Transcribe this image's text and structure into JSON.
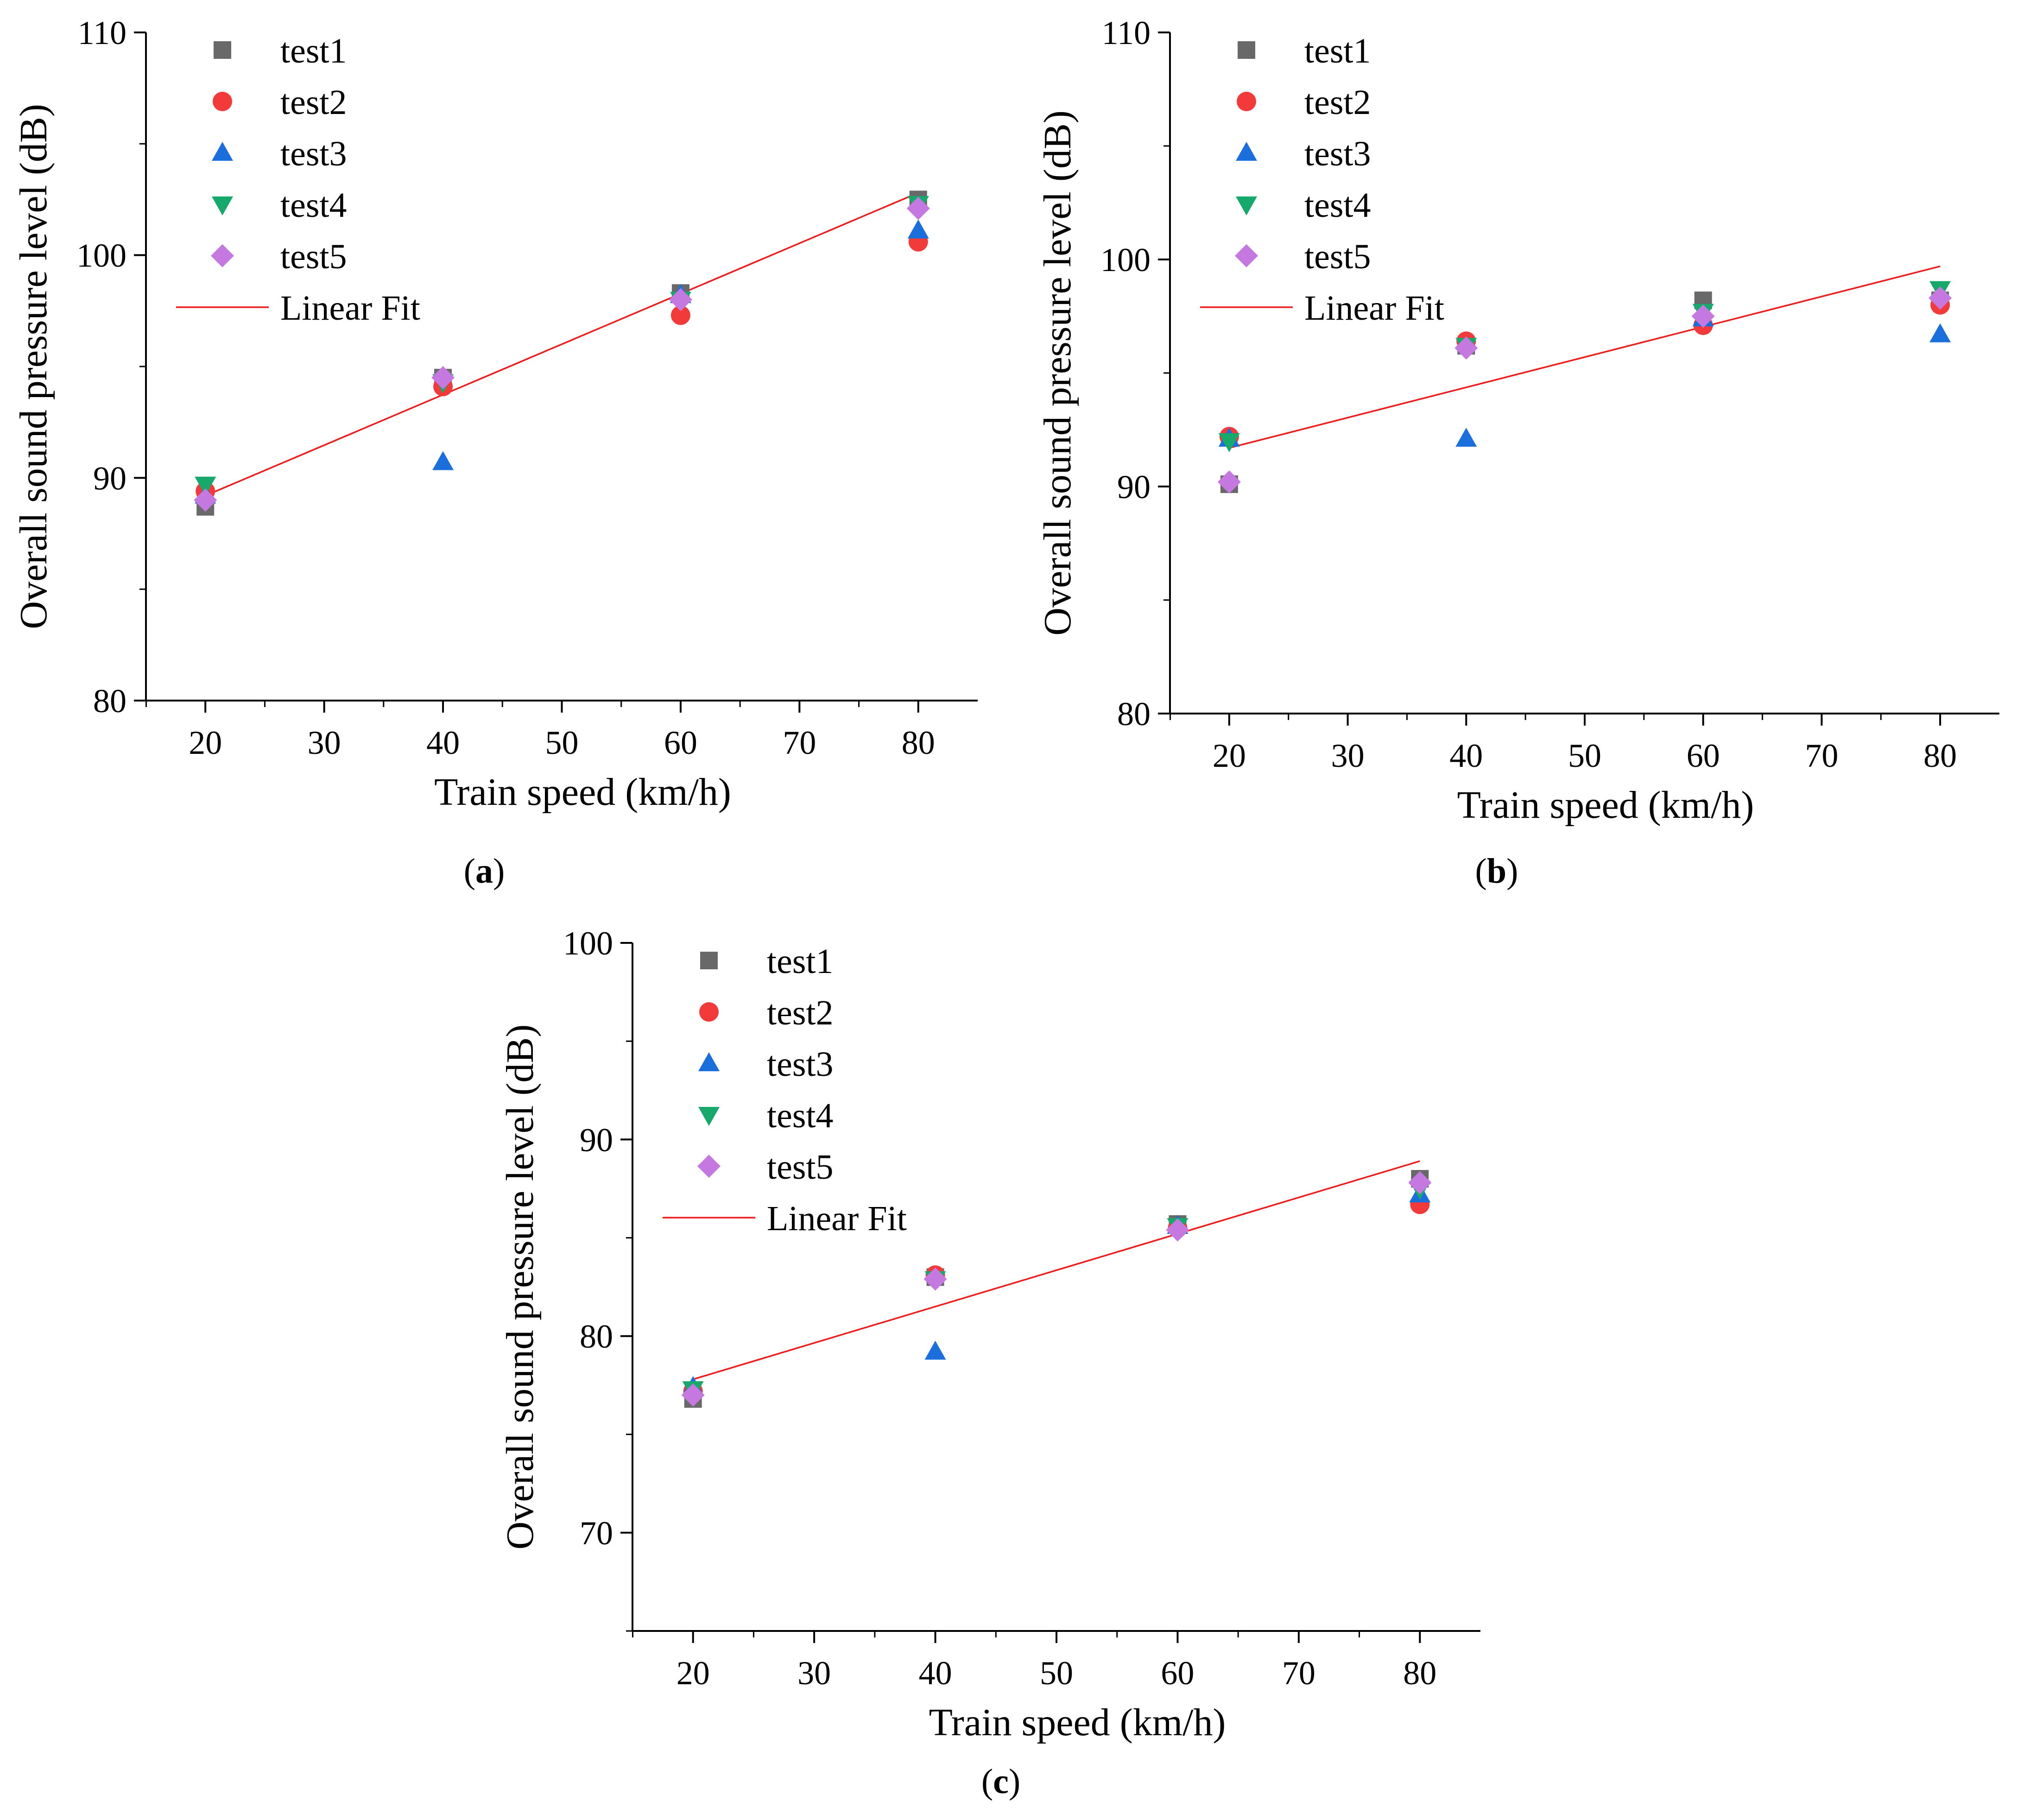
{
  "colors": {
    "test1": "#696969",
    "test2": "#f33a3a",
    "test3": "#1a6fdc",
    "test4": "#17a86b",
    "test5": "#c478e0",
    "fit": "#ee1d1d",
    "axis": "#000000"
  },
  "chart_data": [
    {
      "type": "scatter",
      "panel_label": "(a)",
      "panel_letter": "a",
      "xlabel": "Train speed (km/h)",
      "ylabel": "Overall sound pressure level (dB)",
      "xlim": [
        15,
        85
      ],
      "ylim": [
        80,
        110
      ],
      "xticks": [
        20,
        30,
        40,
        50,
        60,
        70,
        80
      ],
      "yticks": [
        80,
        90,
        100,
        110
      ],
      "legend_position": "top-left",
      "series": [
        {
          "name": "test1",
          "marker": "square",
          "x": [
            20,
            40,
            60,
            80
          ],
          "y": [
            88.7,
            94.5,
            98.3,
            102.5
          ]
        },
        {
          "name": "test2",
          "marker": "circle",
          "x": [
            20,
            40,
            60,
            80
          ],
          "y": [
            89.4,
            94.1,
            97.3,
            100.6
          ]
        },
        {
          "name": "test3",
          "marker": "triangle-up",
          "x": [
            20,
            40,
            60,
            80
          ],
          "y": [
            89.2,
            90.7,
            98.2,
            101.1
          ]
        },
        {
          "name": "test4",
          "marker": "triangle-down",
          "x": [
            20,
            40,
            60,
            80
          ],
          "y": [
            89.7,
            94.3,
            98.0,
            102.3
          ]
        },
        {
          "name": "test5",
          "marker": "diamond",
          "x": [
            20,
            40,
            60,
            80
          ],
          "y": [
            89.0,
            94.5,
            98.0,
            102.1
          ]
        }
      ],
      "fit": {
        "name": "Linear Fit",
        "x": [
          20,
          80
        ],
        "y": [
          89.2,
          102.8
        ]
      }
    },
    {
      "type": "scatter",
      "panel_label": "(b)",
      "panel_letter": "b",
      "xlabel": "Train speed (km/h)",
      "ylabel": "Overall sound pressure level (dB)",
      "xlim": [
        15,
        85
      ],
      "ylim": [
        80,
        110
      ],
      "xticks": [
        20,
        30,
        40,
        50,
        60,
        70,
        80
      ],
      "yticks": [
        80,
        90,
        100,
        110
      ],
      "legend_position": "top-left",
      "series": [
        {
          "name": "test1",
          "marker": "square",
          "x": [
            20,
            40,
            60,
            80
          ],
          "y": [
            90.1,
            96.2,
            98.2,
            98.2
          ]
        },
        {
          "name": "test2",
          "marker": "circle",
          "x": [
            20,
            40,
            60,
            80
          ],
          "y": [
            92.2,
            96.4,
            97.1,
            98.0
          ]
        },
        {
          "name": "test3",
          "marker": "triangle-up",
          "x": [
            20,
            40,
            60,
            80
          ],
          "y": [
            92.1,
            92.1,
            97.4,
            96.7
          ]
        },
        {
          "name": "test4",
          "marker": "triangle-down",
          "x": [
            20,
            40,
            60,
            80
          ],
          "y": [
            92.0,
            96.2,
            97.7,
            98.7
          ]
        },
        {
          "name": "test5",
          "marker": "diamond",
          "x": [
            20,
            40,
            60,
            80
          ],
          "y": [
            90.2,
            96.1,
            97.5,
            98.3
          ]
        }
      ],
      "fit": {
        "name": "Linear Fit",
        "x": [
          20,
          80
        ],
        "y": [
          91.7,
          99.7
        ]
      }
    },
    {
      "type": "scatter",
      "panel_label": "(c)",
      "panel_letter": "c",
      "xlabel": "Train speed (km/h)",
      "ylabel": "Overall sound pressure level (dB)",
      "xlim": [
        15,
        85
      ],
      "ylim": [
        65,
        100
      ],
      "xticks": [
        20,
        30,
        40,
        50,
        60,
        70,
        80
      ],
      "yticks": [
        70,
        80,
        90,
        100
      ],
      "legend_position": "top-left",
      "series": [
        {
          "name": "test1",
          "marker": "square",
          "x": [
            20,
            40,
            60,
            80
          ],
          "y": [
            76.8,
            83.0,
            85.7,
            88.0
          ]
        },
        {
          "name": "test2",
          "marker": "circle",
          "x": [
            20,
            40,
            60,
            80
          ],
          "y": [
            77.2,
            83.1,
            85.5,
            86.7
          ]
        },
        {
          "name": "test3",
          "marker": "triangle-up",
          "x": [
            20,
            40,
            60,
            80
          ],
          "y": [
            77.4,
            79.2,
            85.6,
            87.2
          ]
        },
        {
          "name": "test4",
          "marker": "triangle-down",
          "x": [
            20,
            40,
            60,
            80
          ],
          "y": [
            77.3,
            82.9,
            85.6,
            87.5
          ]
        },
        {
          "name": "test5",
          "marker": "diamond",
          "x": [
            20,
            40,
            60,
            80
          ],
          "y": [
            77.0,
            82.9,
            85.4,
            87.8
          ]
        }
      ],
      "fit": {
        "name": "Linear Fit",
        "x": [
          20,
          80
        ],
        "y": [
          77.8,
          88.9
        ]
      }
    }
  ]
}
